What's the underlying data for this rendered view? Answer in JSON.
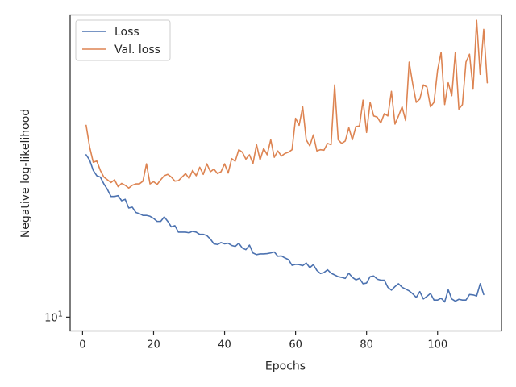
{
  "chart_data": {
    "type": "line",
    "xlabel": "Epochs",
    "ylabel": "Negative log-likelihood",
    "x_ticks": [
      0,
      20,
      40,
      60,
      80,
      100
    ],
    "y_tick_labels": [
      {
        "value": 10,
        "base": "10",
        "exp": "1"
      }
    ],
    "xlim": [
      -3.5,
      118
    ],
    "ylim": [
      9.65,
      21.8
    ],
    "y_scale": "log",
    "grid": false,
    "legend_position": "top-left",
    "colors": {
      "loss": "#4c72b0",
      "val_loss": "#dd8452",
      "axes": "#262626"
    },
    "series": [
      {
        "name": "Loss",
        "x_start": 1,
        "values": [
          15.2,
          14.99,
          14.6,
          14.4,
          14.35,
          14.1,
          13.9,
          13.65,
          13.65,
          13.68,
          13.5,
          13.55,
          13.25,
          13.28,
          13.1,
          13.06,
          13.0,
          13.0,
          12.97,
          12.9,
          12.8,
          12.8,
          12.95,
          12.8,
          12.62,
          12.66,
          12.45,
          12.45,
          12.45,
          12.43,
          12.48,
          12.45,
          12.38,
          12.38,
          12.34,
          12.23,
          12.08,
          12.06,
          12.12,
          12.08,
          12.1,
          12.03,
          12.0,
          12.1,
          11.95,
          11.9,
          12.04,
          11.8,
          11.75,
          11.77,
          11.77,
          11.78,
          11.8,
          11.83,
          11.7,
          11.71,
          11.65,
          11.6,
          11.43,
          11.46,
          11.45,
          11.42,
          11.5,
          11.36,
          11.45,
          11.28,
          11.19,
          11.22,
          11.3,
          11.2,
          11.15,
          11.1,
          11.08,
          11.05,
          11.2,
          11.08,
          11.01,
          11.05,
          10.9,
          10.92,
          11.1,
          11.12,
          11.03,
          11.0,
          11.0,
          10.8,
          10.72,
          10.82,
          10.9,
          10.8,
          10.75,
          10.7,
          10.62,
          10.52,
          10.68,
          10.48,
          10.55,
          10.63,
          10.45,
          10.45,
          10.5,
          10.4,
          10.73,
          10.48,
          10.42,
          10.47,
          10.45,
          10.45,
          10.6,
          10.59,
          10.56,
          10.9,
          10.6
        ]
      },
      {
        "name": "Val. loss",
        "x_start": 1,
        "values": [
          16.4,
          15.5,
          14.91,
          14.96,
          14.6,
          14.35,
          14.25,
          14.15,
          14.25,
          14.0,
          14.12,
          14.05,
          13.95,
          14.05,
          14.1,
          14.1,
          14.2,
          14.85,
          14.1,
          14.18,
          14.08,
          14.25,
          14.4,
          14.45,
          14.35,
          14.2,
          14.22,
          14.35,
          14.48,
          14.3,
          14.6,
          14.4,
          14.72,
          14.45,
          14.85,
          14.55,
          14.65,
          14.48,
          14.55,
          14.85,
          14.5,
          15.05,
          14.95,
          15.4,
          15.3,
          15.03,
          15.2,
          14.86,
          15.6,
          15.0,
          15.45,
          15.2,
          15.8,
          15.1,
          15.35,
          15.15,
          15.25,
          15.3,
          15.4,
          16.7,
          16.4,
          17.2,
          15.8,
          15.55,
          16.0,
          15.35,
          15.4,
          15.38,
          15.65,
          15.6,
          18.2,
          15.8,
          15.65,
          15.75,
          16.3,
          15.8,
          16.35,
          16.37,
          17.5,
          16.1,
          17.4,
          16.8,
          16.75,
          16.5,
          16.9,
          16.8,
          17.9,
          16.45,
          16.8,
          17.2,
          16.6,
          19.3,
          18.25,
          17.4,
          17.55,
          18.2,
          18.1,
          17.2,
          17.4,
          18.9,
          19.8,
          17.3,
          18.3,
          17.7,
          19.8,
          17.1,
          17.3,
          19.3,
          19.7,
          18.0,
          21.5,
          18.7,
          21.0,
          18.3
        ]
      }
    ]
  }
}
